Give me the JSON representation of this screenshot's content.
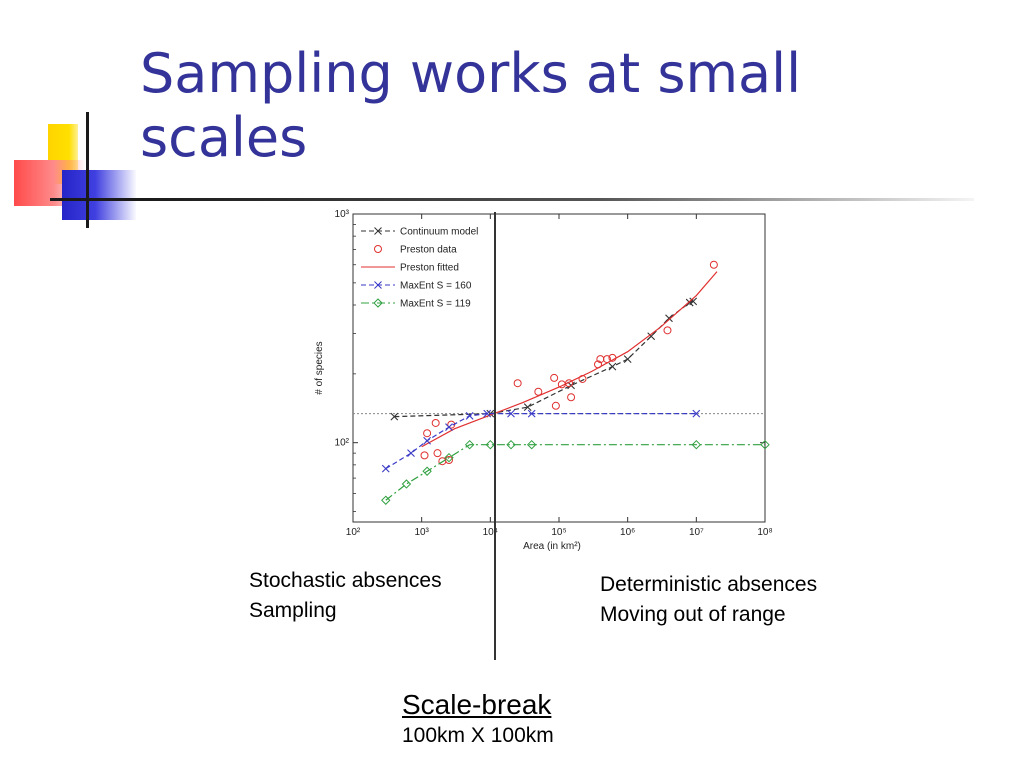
{
  "slide": {
    "title": "Sampling works at small scales",
    "left_caption": [
      "Stochastic absences",
      "Sampling"
    ],
    "right_caption": [
      "Deterministic absences",
      "Moving out of range"
    ],
    "scale_break_title": "Scale-break",
    "scale_break_sub": "100km X 100km"
  },
  "chart_data": {
    "type": "scatter",
    "title": "",
    "xlabel": "Area (in km²)",
    "ylabel": "# of species",
    "xscale": "log",
    "yscale": "log",
    "xlim": [
      100,
      100000000
    ],
    "ylim": [
      45,
      1000
    ],
    "x_ticks": [
      {
        "value": 100,
        "label": "10²"
      },
      {
        "value": 1000,
        "label": "10³"
      },
      {
        "value": 10000,
        "label": "10⁴"
      },
      {
        "value": 100000,
        "label": "10⁵"
      },
      {
        "value": 1000000,
        "label": "10⁶"
      },
      {
        "value": 10000000,
        "label": "10⁷"
      },
      {
        "value": 100000000,
        "label": "10⁸"
      }
    ],
    "y_ticks": [
      {
        "value": 100,
        "label": "10²"
      },
      {
        "value": 1000,
        "label": "10³"
      }
    ],
    "legend_position": "top-left",
    "series": [
      {
        "name": "Continuum model",
        "color": "#333333",
        "style": "dashed",
        "marker": "x",
        "x": [
          400,
          10000,
          35000,
          150000,
          600000,
          1000000,
          2200000,
          4000000,
          8000000,
          9000000
        ],
        "y": [
          130,
          134,
          143,
          178,
          215,
          232,
          292,
          350,
          410,
          415
        ]
      },
      {
        "name": "Preston data",
        "color": "#e03030",
        "style": "none",
        "marker": "o",
        "x": [
          1100,
          1200,
          1600,
          1700,
          2000,
          2500,
          2700,
          25000,
          50000,
          85000,
          90000,
          110000,
          140000,
          150000,
          220000,
          370000,
          400000,
          500000,
          600000,
          3800000,
          18000000
        ],
        "y": [
          88,
          110,
          122,
          90,
          83,
          84,
          120,
          182,
          167,
          192,
          145,
          180,
          182,
          158,
          190,
          220,
          232,
          232,
          235,
          310,
          600
        ]
      },
      {
        "name": "Preston fitted",
        "color": "#e03030",
        "style": "solid",
        "marker": "none",
        "x": [
          1000,
          3000,
          10000,
          30000,
          100000,
          300000,
          1000000,
          3000000,
          10000000,
          20000000
        ],
        "y": [
          96,
          115,
          132,
          150,
          175,
          205,
          250,
          320,
          440,
          560
        ]
      },
      {
        "name": "MaxEnt S = 160",
        "color": "#3a3ac8",
        "style": "dashed",
        "marker": "x",
        "x": [
          300,
          700,
          1200,
          2500,
          5000,
          9000,
          20000,
          40000,
          10000000
        ],
        "y": [
          77,
          90,
          102,
          117,
          131,
          134,
          134,
          134,
          134
        ]
      },
      {
        "name": "MaxEnt S = 119",
        "color": "#30a040",
        "style": "dashdot",
        "marker": "diamond",
        "x": [
          300,
          600,
          1200,
          2500,
          5000,
          10000,
          20000,
          40000,
          10000000,
          100000000
        ],
        "y": [
          56,
          66,
          75,
          86,
          98,
          98,
          98,
          98,
          98,
          98
        ]
      }
    ],
    "reference_lines": [
      {
        "orientation": "vertical",
        "x": 10000,
        "color": "#333333",
        "style": "solid"
      },
      {
        "orientation": "horizontal",
        "y": 134,
        "color": "#888888",
        "style": "dotted"
      }
    ]
  }
}
